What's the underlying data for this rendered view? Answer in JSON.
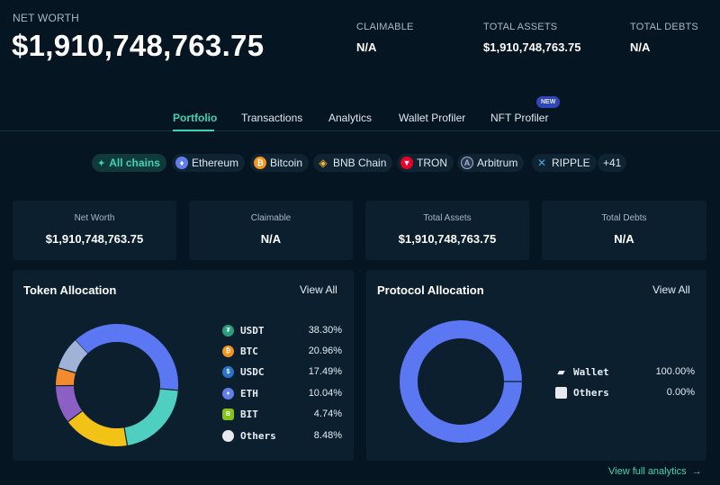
{
  "header": {
    "net_worth_label": "NET WORTH",
    "net_worth_value": "$1,910,748,763.75",
    "claimable_label": "CLAIMABLE",
    "claimable_value": "N/A",
    "total_assets_label": "TOTAL ASSETS",
    "total_assets_value": "$1,910,748,763.75",
    "total_debts_label": "TOTAL DEBTS",
    "total_debts_value": "N/A"
  },
  "tabs": [
    {
      "label": "Portfolio",
      "active": true
    },
    {
      "label": "Transactions"
    },
    {
      "label": "Analytics"
    },
    {
      "label": "Wallet Profiler"
    },
    {
      "label": "NFT Profiler",
      "badge": "NEW"
    }
  ],
  "chains": [
    {
      "label": "All chains",
      "icon": "all-chains-icon",
      "color": "#3ed3b5"
    },
    {
      "label": "Ethereum",
      "icon": "ethereum-icon",
      "color": "#627eea"
    },
    {
      "label": "Bitcoin",
      "icon": "bitcoin-icon",
      "color": "#f7931a"
    },
    {
      "label": "BNB Chain",
      "icon": "bnb-icon",
      "color": "#f3ba2f"
    },
    {
      "label": "TRON",
      "icon": "tron-icon",
      "color": "#eb0029"
    },
    {
      "label": "Arbitrum",
      "icon": "arbitrum-icon",
      "color": "#2d374b"
    },
    {
      "label": "RIPPLE",
      "icon": "ripple-icon",
      "color": "#23292f"
    },
    {
      "label": "+41"
    }
  ],
  "cards": [
    {
      "label": "Net Worth",
      "value": "$1,910,748,763.75"
    },
    {
      "label": "Claimable",
      "value": "N/A"
    },
    {
      "label": "Total Assets",
      "value": "$1,910,748,763.75"
    },
    {
      "label": "Total Debts",
      "value": "N/A"
    }
  ],
  "token_allocation": {
    "title": "Token Allocation",
    "view_all": "View All",
    "items": [
      {
        "name": "USDT",
        "percent": "38.30%",
        "value": 38.3,
        "color": "#5b77f2",
        "icon_color": "#26a17b"
      },
      {
        "name": "BTC",
        "percent": "20.96%",
        "value": 20.96,
        "color": "#4fcfc0",
        "icon_color": "#f7931a"
      },
      {
        "name": "USDC",
        "percent": "17.49%",
        "value": 17.49,
        "color": "#f2c316",
        "icon_color": "#2775ca"
      },
      {
        "name": "ETH",
        "percent": "10.04%",
        "value": 10.04,
        "color": "#8b5fc4",
        "icon_color": "#627eea"
      },
      {
        "name": "BIT",
        "percent": "4.74%",
        "value": 4.74,
        "color": "#f28b2e",
        "icon_color": "#84c41a"
      },
      {
        "name": "Others",
        "percent": "8.48%",
        "value": 8.48,
        "color": "#9fb3d6",
        "icon_color": "#e6e9ee"
      }
    ]
  },
  "protocol_allocation": {
    "title": "Protocol Allocation",
    "view_all": "View All",
    "items": [
      {
        "name": "Wallet",
        "percent": "100.00%",
        "value": 100.0,
        "color": "#5b77f2"
      },
      {
        "name": "Others",
        "percent": "0.00%",
        "value": 0.0,
        "color": "#e6e9ee"
      }
    ]
  },
  "footer": {
    "link": "View full analytics",
    "arrow": "→"
  }
}
